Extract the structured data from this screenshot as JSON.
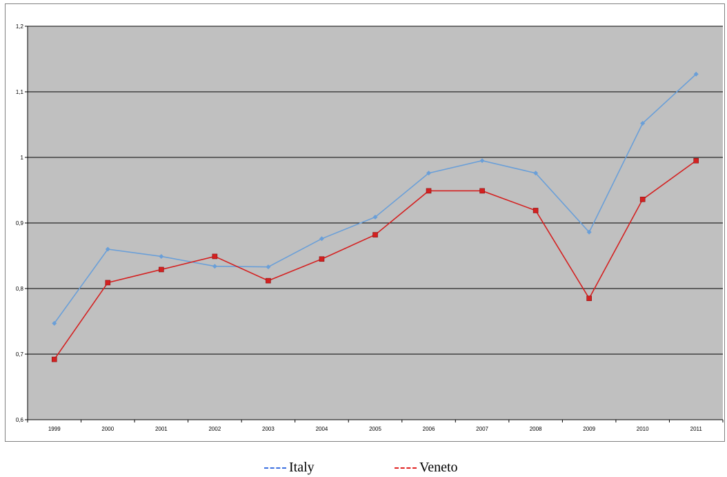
{
  "chart_data": {
    "type": "line",
    "categories": [
      "1999",
      "2000",
      "2001",
      "2002",
      "2003",
      "2004",
      "2005",
      "2006",
      "2007",
      "2008",
      "2009",
      "2010",
      "2011"
    ],
    "series": [
      {
        "name": "Italy",
        "color": "#6a9fd8",
        "marker": "diamond",
        "values": [
          0.747,
          0.86,
          0.849,
          0.834,
          0.833,
          0.876,
          0.909,
          0.976,
          0.995,
          0.976,
          0.886,
          1.052,
          1.127
        ]
      },
      {
        "name": "Veneto",
        "color": "#d42020",
        "marker": "square",
        "values": [
          0.692,
          0.809,
          0.829,
          0.849,
          0.812,
          0.845,
          0.882,
          0.949,
          0.949,
          0.919,
          0.785,
          0.936,
          0.995
        ]
      }
    ],
    "yticks": [
      "0,6",
      "0,7",
      "0,8",
      "0,9",
      "1",
      "1,1",
      "1,2"
    ],
    "ylim": [
      0.6,
      1.2
    ],
    "grid": "horizontal",
    "plot_background": "#c0c0c0",
    "legend_position": "bottom"
  }
}
